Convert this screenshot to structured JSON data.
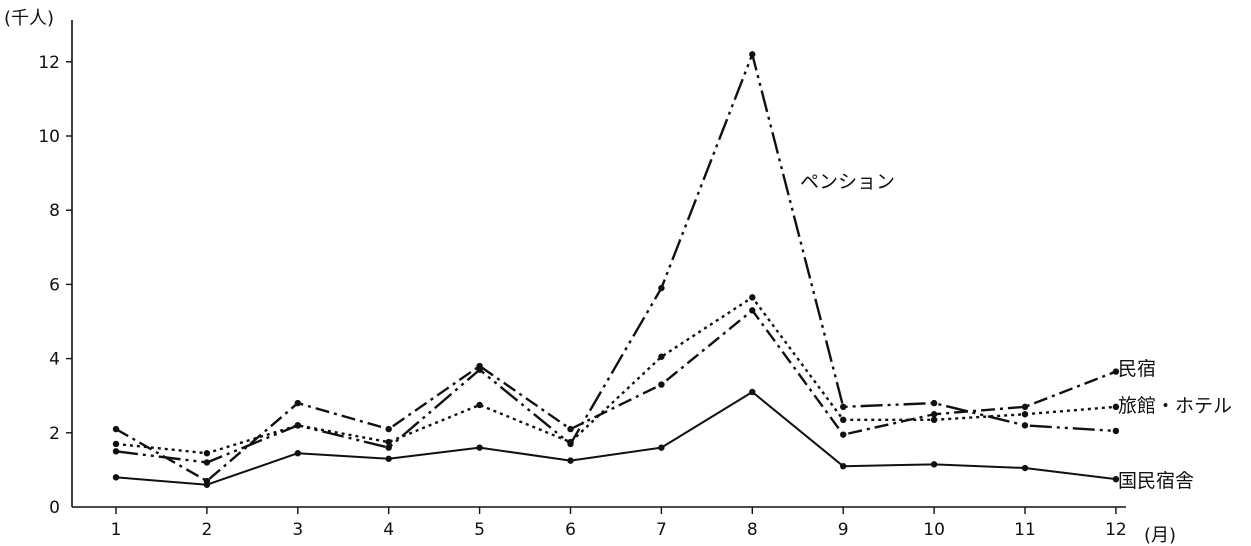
{
  "chart_data": {
    "type": "line",
    "title": "",
    "xlabel": "",
    "ylabel": "",
    "x_unit": "(月)",
    "y_unit": "(千人)",
    "categories": [
      "1",
      "2",
      "3",
      "4",
      "5",
      "6",
      "7",
      "8",
      "9",
      "10",
      "11",
      "12"
    ],
    "y_ticks": [
      "0",
      "2",
      "4",
      "6",
      "8",
      "10",
      "12"
    ],
    "ylim": [
      0,
      13
    ],
    "grid": false,
    "legend": "inline-labels",
    "series": [
      {
        "name": "ペンション",
        "style": "dash-dot-dot",
        "values": [
          1.5,
          1.2,
          2.2,
          1.6,
          3.7,
          1.7,
          5.9,
          12.2,
          2.7,
          2.8,
          2.2,
          2.05
        ]
      },
      {
        "name": "民宿",
        "style": "dash-dot",
        "values": [
          2.1,
          0.7,
          2.8,
          2.1,
          3.8,
          2.1,
          3.3,
          5.3,
          1.95,
          2.5,
          2.7,
          3.65
        ]
      },
      {
        "name": "旅館・ホテル",
        "style": "dotted",
        "values": [
          1.7,
          1.45,
          2.2,
          1.75,
          2.75,
          1.75,
          4.05,
          5.65,
          2.35,
          2.35,
          2.5,
          2.7
        ]
      },
      {
        "name": "国民宿舎",
        "style": "solid",
        "values": [
          0.8,
          0.6,
          1.45,
          1.3,
          1.6,
          1.25,
          1.6,
          3.1,
          1.1,
          1.15,
          1.05,
          0.75
        ]
      }
    ]
  }
}
